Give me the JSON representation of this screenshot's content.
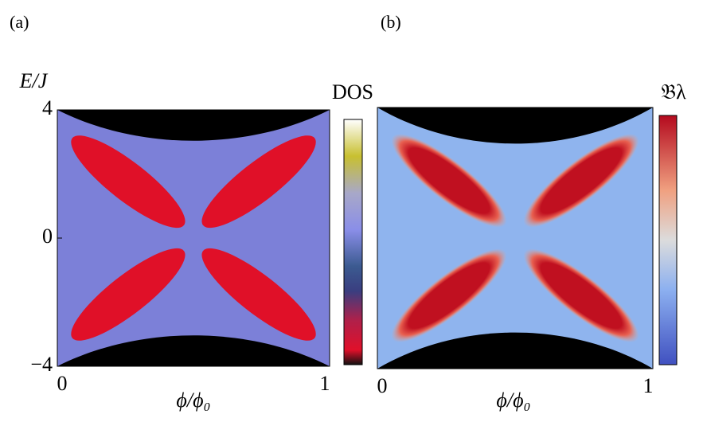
{
  "chart_data": [
    {
      "type": "heatmap",
      "panel_label": "(a)",
      "y_label": "E/J",
      "x_label": "ϕ/ϕ₀",
      "colorbar_label": "DOS",
      "xlim": [
        0,
        1
      ],
      "xticks": [
        0,
        1
      ],
      "ylim": [
        -4,
        4
      ],
      "yticks": [
        {
          "value": -4,
          "label": "−4"
        },
        0,
        4
      ]
    },
    {
      "type": "heatmap",
      "panel_label": "(b)",
      "x_label": "ϕ/ϕ₀",
      "colorbar_label": "𝔅λ",
      "xlim": [
        0,
        1
      ],
      "xticks": [
        0,
        1
      ]
    }
  ]
}
